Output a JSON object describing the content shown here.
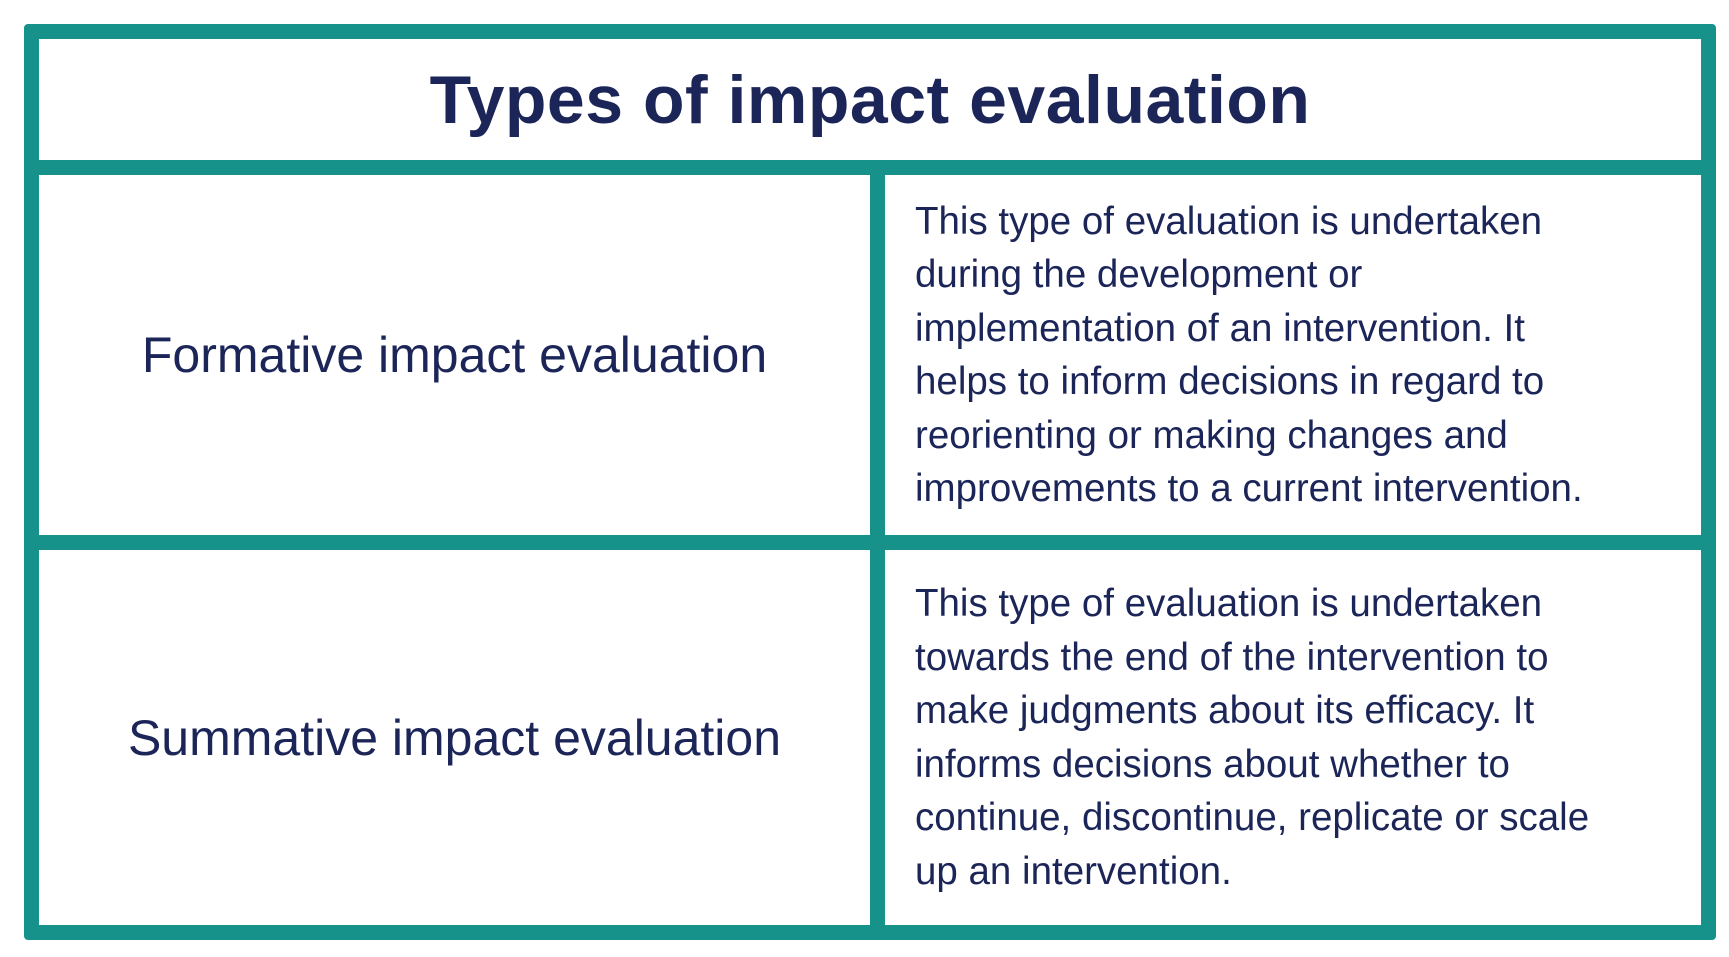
{
  "table": {
    "title": "Types of impact evaluation",
    "rows": [
      {
        "label": "Formative impact evaluation",
        "description": [
          "This type of evaluation is undertaken",
          "during the development or",
          "implementation of an intervention. It",
          "helps to inform decisions in regard to",
          "reorienting or making changes and",
          "improvements to a current intervention."
        ]
      },
      {
        "label": "Summative impact evaluation",
        "description": [
          "This type of evaluation is undertaken",
          "towards the end of the intervention to",
          "make judgments about its efficacy. It",
          "informs decisions about whether to",
          "continue, discontinue, replicate or scale",
          "up an intervention."
        ]
      }
    ]
  }
}
